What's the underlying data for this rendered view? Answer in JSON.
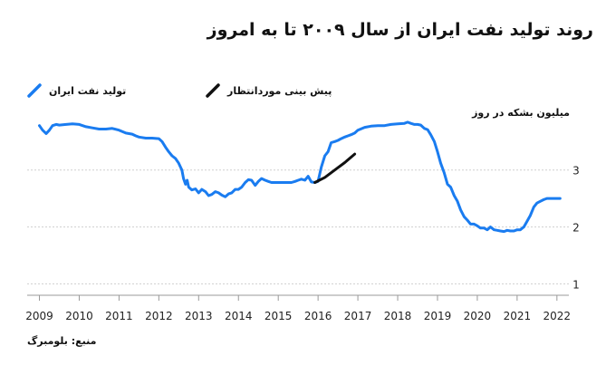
{
  "title": "روند تولید نفت ایران از سال ۲۰۰۹ تا به امروز",
  "source": "منبع: بلومبرگ",
  "colors": {
    "production": "#1a7cf0",
    "forecast": "#111111",
    "grid": "#cfcfcf",
    "axis": "#999999"
  },
  "chart_data": {
    "type": "line",
    "title": "روند تولید نفت ایران از سال ۲۰۰۹ تا به امروز",
    "xlabel": "",
    "ylabel": "میلیون بشکه در روز",
    "xlim": [
      2008.92,
      2022.3
    ],
    "ylim": [
      0.8,
      3.95
    ],
    "x_ticks": [
      2009,
      2010,
      2011,
      2012,
      2013,
      2014,
      2015,
      2016,
      2017,
      2018,
      2019,
      2020,
      2021,
      2022
    ],
    "y_ticks": [
      1,
      2,
      3
    ],
    "grid": true,
    "legend_position": "top",
    "series": [
      {
        "name": "تولید نفت ایران",
        "color": "#1a7cf0",
        "x": [
          2009.0,
          2009.08,
          2009.17,
          2009.25,
          2009.33,
          2009.42,
          2009.5,
          2009.67,
          2009.83,
          2010.0,
          2010.17,
          2010.33,
          2010.5,
          2010.67,
          2010.83,
          2011.0,
          2011.17,
          2011.33,
          2011.42,
          2011.5,
          2011.67,
          2011.83,
          2012.0,
          2012.08,
          2012.17,
          2012.25,
          2012.33,
          2012.42,
          2012.5,
          2012.58,
          2012.62,
          2012.67,
          2012.71,
          2012.75,
          2012.83,
          2012.92,
          2013.0,
          2013.08,
          2013.17,
          2013.25,
          2013.33,
          2013.42,
          2013.5,
          2013.58,
          2013.67,
          2013.75,
          2013.83,
          2013.92,
          2014.0,
          2014.08,
          2014.17,
          2014.25,
          2014.33,
          2014.42,
          2014.5,
          2014.58,
          2014.67,
          2014.75,
          2014.83,
          2015.0,
          2015.17,
          2015.33,
          2015.42,
          2015.5,
          2015.58,
          2015.67,
          2015.75,
          2015.83,
          2015.92,
          2016.0,
          2016.08,
          2016.17,
          2016.25,
          2016.33,
          2016.42,
          2016.5,
          2016.58,
          2016.67,
          2016.75,
          2016.83,
          2016.92,
          2017.0,
          2017.17,
          2017.33,
          2017.5,
          2017.67,
          2017.83,
          2018.0,
          2018.17,
          2018.25,
          2018.33,
          2018.42,
          2018.5,
          2018.58,
          2018.67,
          2018.75,
          2018.83,
          2018.92,
          2019.0,
          2019.08,
          2019.17,
          2019.25,
          2019.33,
          2019.42,
          2019.5,
          2019.58,
          2019.67,
          2019.75,
          2019.83,
          2019.92,
          2020.0,
          2020.08,
          2020.17,
          2020.25,
          2020.33,
          2020.42,
          2020.5,
          2020.58,
          2020.67,
          2020.75,
          2020.83,
          2020.92,
          2021.0,
          2021.08,
          2021.17,
          2021.25,
          2021.33,
          2021.42,
          2021.5,
          2021.58,
          2021.67,
          2021.75,
          2021.83,
          2021.92,
          2022.0,
          2022.08
        ],
        "y": [
          3.78,
          3.7,
          3.64,
          3.7,
          3.78,
          3.8,
          3.79,
          3.8,
          3.81,
          3.8,
          3.76,
          3.74,
          3.72,
          3.72,
          3.73,
          3.7,
          3.65,
          3.63,
          3.6,
          3.58,
          3.56,
          3.56,
          3.55,
          3.5,
          3.4,
          3.32,
          3.25,
          3.2,
          3.12,
          3.0,
          2.85,
          2.75,
          2.82,
          2.7,
          2.65,
          2.67,
          2.6,
          2.66,
          2.62,
          2.55,
          2.57,
          2.62,
          2.6,
          2.56,
          2.53,
          2.58,
          2.6,
          2.66,
          2.66,
          2.7,
          2.78,
          2.83,
          2.82,
          2.73,
          2.8,
          2.85,
          2.82,
          2.8,
          2.78,
          2.78,
          2.78,
          2.78,
          2.8,
          2.82,
          2.84,
          2.82,
          2.89,
          2.79,
          2.78,
          2.8,
          3.05,
          3.25,
          3.32,
          3.48,
          3.5,
          3.52,
          3.55,
          3.58,
          3.6,
          3.62,
          3.65,
          3.7,
          3.75,
          3.77,
          3.78,
          3.78,
          3.8,
          3.81,
          3.82,
          3.84,
          3.82,
          3.8,
          3.8,
          3.79,
          3.73,
          3.71,
          3.62,
          3.5,
          3.32,
          3.12,
          2.95,
          2.75,
          2.7,
          2.55,
          2.45,
          2.3,
          2.18,
          2.12,
          2.05,
          2.05,
          2.02,
          1.98,
          1.98,
          1.95,
          2.0,
          1.95,
          1.94,
          1.93,
          1.92,
          1.94,
          1.93,
          1.93,
          1.95,
          1.95,
          2.0,
          2.1,
          2.2,
          2.35,
          2.42,
          2.45,
          2.48,
          2.5,
          2.5,
          2.5,
          2.5,
          2.5
        ]
      },
      {
        "name": "پیش بینی موردانتظار",
        "color": "#111111",
        "x": [
          2015.92,
          2016.17,
          2016.42,
          2016.67,
          2016.92
        ],
        "y": [
          2.78,
          2.87,
          3.0,
          3.13,
          3.28
        ]
      }
    ]
  }
}
